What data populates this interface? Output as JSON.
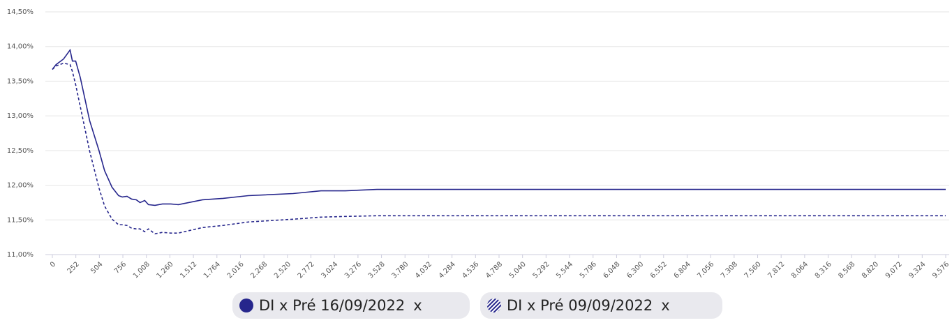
{
  "chart_data": {
    "type": "line",
    "xlim": [
      0,
      9576
    ],
    "xticks": [
      0,
      252,
      504,
      756,
      {
        "value": 1008,
        "label": "1.008"
      },
      {
        "value": 1260,
        "label": "1.260"
      },
      {
        "value": 1512,
        "label": "1.512"
      },
      {
        "value": 1764,
        "label": "1.764"
      },
      {
        "value": 2016,
        "label": "2.016"
      },
      {
        "value": 2268,
        "label": "2.268"
      },
      {
        "value": 2520,
        "label": "2.520"
      },
      {
        "value": 2772,
        "label": "2.772"
      },
      {
        "value": 3024,
        "label": "3.024"
      },
      {
        "value": 3276,
        "label": "3.276"
      },
      {
        "value": 3528,
        "label": "3.528"
      },
      {
        "value": 3780,
        "label": "3.780"
      },
      {
        "value": 4032,
        "label": "4.032"
      },
      {
        "value": 4284,
        "label": "4.284"
      },
      {
        "value": 4536,
        "label": "4.536"
      },
      {
        "value": 4788,
        "label": "4.788"
      },
      {
        "value": 5040,
        "label": "5.040"
      },
      {
        "value": 5292,
        "label": "5.292"
      },
      {
        "value": 5544,
        "label": "5.544"
      },
      {
        "value": 5796,
        "label": "5.796"
      },
      {
        "value": 6048,
        "label": "6.048"
      },
      {
        "value": 6300,
        "label": "6.300"
      },
      {
        "value": 6552,
        "label": "6.552"
      },
      {
        "value": 6804,
        "label": "6.804"
      },
      {
        "value": 7056,
        "label": "7.056"
      },
      {
        "value": 7308,
        "label": "7.308"
      },
      {
        "value": 7560,
        "label": "7.560"
      },
      {
        "value": 7812,
        "label": "7.812"
      },
      {
        "value": 8064,
        "label": "8.064"
      },
      {
        "value": 8316,
        "label": "8.316"
      },
      {
        "value": 8568,
        "label": "8.568"
      },
      {
        "value": 8820,
        "label": "8.820"
      },
      {
        "value": 9072,
        "label": "9.072"
      },
      {
        "value": 9324,
        "label": "9.324"
      },
      {
        "value": 9576,
        "label": "9.576"
      }
    ],
    "ylim": [
      11,
      14.5
    ],
    "yticks": [
      {
        "value": 11,
        "label": "11,00%"
      },
      {
        "value": 11.5,
        "label": "11,50%"
      },
      {
        "value": 12,
        "label": "12,00%"
      },
      {
        "value": 12.5,
        "label": "12,50%"
      },
      {
        "value": 13,
        "label": "13,00%"
      },
      {
        "value": 13.5,
        "label": "13,50%"
      },
      {
        "value": 14,
        "label": "14,00%"
      },
      {
        "value": 14.5,
        "label": "14,50%"
      }
    ],
    "grid": true,
    "x": [
      0,
      40,
      120,
      190,
      215,
      250,
      300,
      400,
      500,
      560,
      640,
      710,
      750,
      800,
      850,
      900,
      940,
      990,
      1030,
      1100,
      1180,
      1270,
      1350,
      1610,
      1830,
      2100,
      2580,
      2880,
      3140,
      3480,
      9576
    ],
    "series": [
      {
        "name": "DI x Pré 16/09/2022",
        "color": "#26268c",
        "dash": "solid",
        "values": [
          13.67,
          13.74,
          13.82,
          13.95,
          13.79,
          13.79,
          13.55,
          12.93,
          12.5,
          12.21,
          11.97,
          11.85,
          11.83,
          11.84,
          11.8,
          11.79,
          11.75,
          11.78,
          11.72,
          11.71,
          11.73,
          11.73,
          11.72,
          11.79,
          11.81,
          11.85,
          11.88,
          11.92,
          11.92,
          11.94,
          11.94
        ]
      },
      {
        "name": "DI x Pré 09/09/2022",
        "color": "#26268c",
        "dash": "dashed",
        "values": [
          13.67,
          13.72,
          13.76,
          13.74,
          13.64,
          13.45,
          13.13,
          12.49,
          11.96,
          11.7,
          11.51,
          11.43,
          11.43,
          11.42,
          11.38,
          11.37,
          11.37,
          11.33,
          11.37,
          11.3,
          11.32,
          11.31,
          11.31,
          11.39,
          11.42,
          11.47,
          11.51,
          11.54,
          11.55,
          11.56,
          11.56
        ]
      }
    ],
    "legend_close": "x"
  }
}
